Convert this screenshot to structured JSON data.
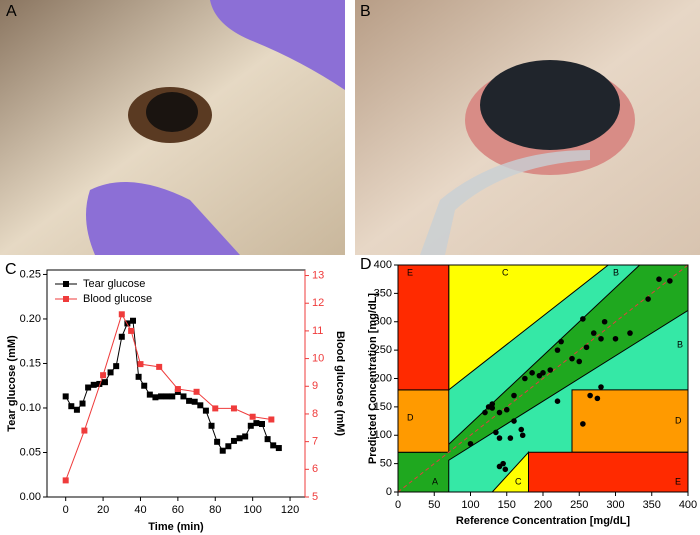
{
  "images": [
    {
      "panel": "A"
    },
    {
      "panel": "B"
    }
  ],
  "chart_data": [
    {
      "type": "line",
      "panel": "C",
      "xlabel": "Time (min)",
      "ylabel": "Tear glucose (mM)",
      "y2label": "Blood glucose (mM)",
      "xlim": [
        -10,
        128
      ],
      "xticks": [
        0,
        20,
        40,
        60,
        80,
        100,
        120
      ],
      "ylim": [
        0,
        0.255
      ],
      "yticks": [
        {
          "value": 0,
          "label": "0.00"
        },
        {
          "value": 0.05,
          "label": "0.05"
        },
        {
          "value": 0.1,
          "label": "0.10"
        },
        {
          "value": 0.15,
          "label": "0.15"
        },
        {
          "value": 0.2,
          "label": "0.20"
        },
        {
          "value": 0.25,
          "label": "0.25"
        }
      ],
      "y2lim": [
        5,
        13.2
      ],
      "y2ticks": [
        5,
        6,
        7,
        8,
        9,
        10,
        11,
        12,
        13
      ],
      "legend": "upper-left",
      "series": [
        {
          "name": "Tear glucose",
          "color": "#000000",
          "x": [
            0,
            3,
            6,
            9,
            12,
            15,
            18,
            21,
            24,
            27,
            30,
            33,
            36,
            39,
            42,
            45,
            48,
            51,
            54,
            57,
            60,
            63,
            66,
            69,
            72,
            75,
            78,
            81,
            84,
            87,
            90,
            93,
            96,
            99,
            102,
            105,
            108,
            111,
            114
          ],
          "values": [
            0.113,
            0.102,
            0.098,
            0.105,
            0.123,
            0.126,
            0.127,
            0.129,
            0.14,
            0.147,
            0.18,
            0.195,
            0.198,
            0.135,
            0.125,
            0.115,
            0.112,
            0.113,
            0.113,
            0.113,
            0.118,
            0.113,
            0.108,
            0.107,
            0.103,
            0.097,
            0.08,
            0.062,
            0.052,
            0.057,
            0.063,
            0.066,
            0.068,
            0.08,
            0.083,
            0.082,
            0.065,
            0.058,
            0.055
          ]
        },
        {
          "name": "Blood glucose",
          "color": "#ef3b3b",
          "axis": "y2",
          "x": [
            0,
            10,
            20,
            30,
            35,
            40,
            50,
            60,
            70,
            80,
            90,
            100,
            110
          ],
          "values": [
            5.6,
            7.4,
            9.4,
            11.6,
            11.0,
            9.8,
            9.7,
            8.9,
            8.8,
            8.2,
            8.2,
            7.9,
            7.8
          ]
        }
      ]
    },
    {
      "type": "scatter",
      "panel": "D",
      "xlabel": "Reference Concentration [mg/dL]",
      "ylabel": "Predicted Concentration [mg/dL]",
      "xlim": [
        0,
        400
      ],
      "xticks": [
        0,
        50,
        100,
        150,
        200,
        250,
        300,
        350,
        400
      ],
      "ylim": [
        0,
        400
      ],
      "yticks": [
        0,
        50,
        100,
        150,
        200,
        250,
        300,
        350,
        400
      ],
      "zone_labels": [
        "E",
        "C",
        "B",
        "B",
        "D",
        "D",
        "A",
        "C",
        "E"
      ],
      "color": "#000000",
      "x": [
        100,
        120,
        125,
        130,
        140,
        150,
        135,
        140,
        155,
        160,
        170,
        172,
        140,
        145,
        148,
        175,
        185,
        195,
        200,
        210,
        220,
        225,
        220,
        240,
        250,
        255,
        260,
        265,
        275,
        280,
        255,
        270,
        285,
        280,
        300,
        320,
        345,
        360,
        375,
        130,
        160
      ],
      "values": [
        85,
        140,
        150,
        148,
        140,
        145,
        105,
        95,
        95,
        125,
        110,
        100,
        45,
        50,
        40,
        200,
        210,
        205,
        210,
        215,
        250,
        265,
        160,
        235,
        230,
        305,
        255,
        170,
        165,
        185,
        120,
        280,
        300,
        270,
        270,
        280,
        340,
        375,
        372,
        155,
        170
      ]
    }
  ]
}
